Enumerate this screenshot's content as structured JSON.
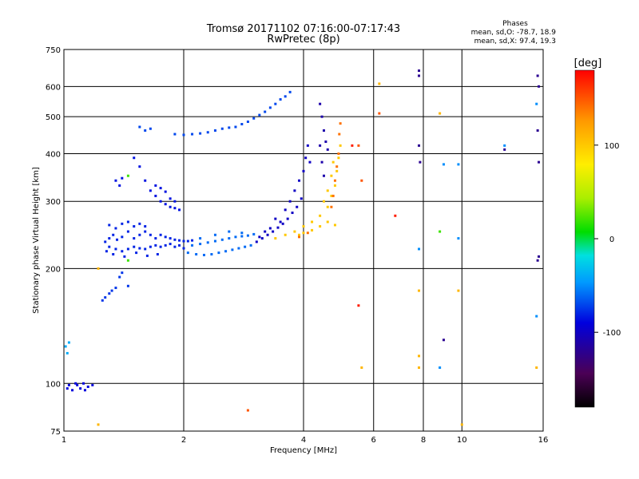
{
  "header": {
    "title_line1": "Tromsø 20171102 07:16:00-07:17:43",
    "title_line2": "RwPretec (8p)",
    "stats_title": "Phases",
    "stats_o": "mean, sd,O: -78.7, 18.9",
    "stats_x": "mean, sd,X:  97.4, 19.3"
  },
  "chart_data": {
    "type": "scatter",
    "xlabel": "Frequency [MHz]",
    "ylabel": "Stationary phase Virtual Height [km]",
    "x_scale": "log",
    "y_scale": "log",
    "xlim": [
      1,
      16
    ],
    "ylim": [
      75,
      750
    ],
    "grid": true,
    "x_ticks": [
      1,
      2,
      4,
      6,
      8,
      10,
      16
    ],
    "x_tick_labels": [
      "1",
      "2",
      "4",
      "6",
      "8",
      "10",
      "16"
    ],
    "y_ticks": [
      75,
      100,
      200,
      300,
      400,
      500,
      600,
      750
    ],
    "y_tick_labels": [
      "75",
      "100",
      "200",
      "300",
      "400",
      "500",
      "600",
      "750"
    ],
    "colorbar": {
      "label": "[deg]",
      "range": [
        -180,
        180
      ],
      "ticks": [
        100,
        0,
        -100
      ],
      "tick_labels": [
        "100",
        "0",
        "-100"
      ],
      "colormap": "rainbow (black-purple-blue-cyan-green-yellow-orange-red)"
    },
    "series": [
      {
        "phase_deg": -90,
        "points": [
          [
            1.02,
            97
          ],
          [
            1.05,
            96
          ],
          [
            1.08,
            99
          ],
          [
            1.1,
            97
          ],
          [
            1.12,
            100
          ],
          [
            1.15,
            98
          ],
          [
            1.18,
            99
          ],
          [
            1.03,
            99
          ],
          [
            1.07,
            100
          ],
          [
            1.13,
            96
          ]
        ]
      },
      {
        "phase_deg": -40,
        "points": [
          [
            1.01,
            125
          ],
          [
            1.02,
            120
          ],
          [
            1.03,
            128
          ]
        ]
      },
      {
        "phase_deg": -75,
        "points": [
          [
            1.25,
            165
          ],
          [
            1.27,
            168
          ],
          [
            1.3,
            172
          ],
          [
            1.32,
            175
          ],
          [
            1.35,
            178
          ],
          [
            1.38,
            190
          ],
          [
            1.4,
            195
          ],
          [
            1.45,
            180
          ]
        ]
      },
      {
        "phase_deg": -80,
        "points": [
          [
            1.27,
            235
          ],
          [
            1.3,
            240
          ],
          [
            1.33,
            245
          ],
          [
            1.36,
            238
          ],
          [
            1.4,
            242
          ],
          [
            1.45,
            250
          ],
          [
            1.5,
            240
          ],
          [
            1.55,
            245
          ],
          [
            1.6,
            250
          ],
          [
            1.65,
            245
          ],
          [
            1.7,
            240
          ],
          [
            1.75,
            245
          ],
          [
            1.8,
            242
          ],
          [
            1.85,
            240
          ],
          [
            1.9,
            238
          ],
          [
            1.95,
            237
          ],
          [
            2.0,
            236
          ],
          [
            2.05,
            236
          ],
          [
            2.1,
            237
          ],
          [
            1.3,
            228
          ],
          [
            1.35,
            225
          ],
          [
            1.4,
            222
          ],
          [
            1.45,
            225
          ],
          [
            1.5,
            228
          ],
          [
            1.55,
            226
          ],
          [
            1.6,
            225
          ],
          [
            1.65,
            228
          ],
          [
            1.7,
            230
          ],
          [
            1.75,
            228
          ],
          [
            1.8,
            230
          ],
          [
            1.85,
            232
          ],
          [
            1.9,
            228
          ],
          [
            1.95,
            230
          ],
          [
            2.0,
            226
          ],
          [
            1.3,
            260
          ],
          [
            1.35,
            255
          ],
          [
            1.4,
            262
          ],
          [
            1.45,
            265
          ],
          [
            1.5,
            258
          ],
          [
            1.55,
            262
          ],
          [
            1.6,
            258
          ],
          [
            1.28,
            222
          ],
          [
            1.33,
            218
          ],
          [
            1.42,
            215
          ],
          [
            1.52,
            220
          ],
          [
            1.62,
            216
          ],
          [
            1.72,
            218
          ]
        ]
      },
      {
        "phase_deg": -60,
        "points": [
          [
            2.05,
            220
          ],
          [
            2.15,
            218
          ],
          [
            2.25,
            217
          ],
          [
            2.35,
            218
          ],
          [
            2.45,
            220
          ],
          [
            2.55,
            222
          ],
          [
            2.65,
            224
          ],
          [
            2.75,
            226
          ],
          [
            2.85,
            228
          ],
          [
            2.95,
            230
          ],
          [
            2.1,
            230
          ],
          [
            2.2,
            232
          ],
          [
            2.3,
            234
          ],
          [
            2.4,
            236
          ],
          [
            2.5,
            238
          ],
          [
            2.6,
            240
          ],
          [
            2.7,
            242
          ],
          [
            2.8,
            243
          ],
          [
            2.9,
            244
          ],
          [
            3.0,
            246
          ],
          [
            2.2,
            240
          ],
          [
            2.4,
            245
          ],
          [
            2.6,
            250
          ],
          [
            2.8,
            248
          ]
        ]
      },
      {
        "phase_deg": -100,
        "points": [
          [
            3.05,
            235
          ],
          [
            3.15,
            240
          ],
          [
            3.25,
            245
          ],
          [
            3.35,
            250
          ],
          [
            3.45,
            256
          ],
          [
            3.55,
            262
          ],
          [
            3.65,
            270
          ],
          [
            3.75,
            280
          ],
          [
            3.85,
            290
          ],
          [
            3.95,
            305
          ],
          [
            3.4,
            270
          ],
          [
            3.5,
            265
          ],
          [
            3.6,
            285
          ],
          [
            3.7,
            300
          ],
          [
            3.8,
            320
          ],
          [
            3.9,
            340
          ],
          [
            4.0,
            360
          ],
          [
            4.05,
            390
          ],
          [
            4.1,
            420
          ],
          [
            4.15,
            380
          ],
          [
            3.3,
            255
          ],
          [
            3.2,
            250
          ],
          [
            3.1,
            242
          ]
        ]
      },
      {
        "phase_deg": 100,
        "points": [
          [
            3.4,
            240
          ],
          [
            3.6,
            245
          ],
          [
            3.8,
            250
          ],
          [
            4.0,
            258
          ],
          [
            4.2,
            265
          ],
          [
            4.4,
            275
          ],
          [
            4.6,
            290
          ],
          [
            4.7,
            310
          ],
          [
            4.8,
            330
          ],
          [
            4.85,
            360
          ],
          [
            4.9,
            390
          ],
          [
            4.95,
            420
          ],
          [
            4.8,
            260
          ],
          [
            4.6,
            265
          ],
          [
            4.4,
            258
          ],
          [
            4.2,
            252
          ],
          [
            4.0,
            248
          ],
          [
            3.9,
            245
          ],
          [
            4.5,
            300
          ],
          [
            4.6,
            320
          ],
          [
            4.7,
            350
          ],
          [
            4.75,
            380
          ]
        ]
      },
      {
        "phase_deg": 140,
        "points": [
          [
            4.7,
            290
          ],
          [
            4.75,
            310
          ],
          [
            4.8,
            340
          ],
          [
            4.85,
            370
          ],
          [
            4.9,
            400
          ],
          [
            4.92,
            450
          ],
          [
            4.95,
            480
          ],
          [
            3.9,
            242
          ],
          [
            4.1,
            248
          ]
        ]
      },
      {
        "phase_deg": -70,
        "points": [
          [
            1.9,
            450
          ],
          [
            2.0,
            448
          ],
          [
            2.1,
            450
          ],
          [
            2.2,
            452
          ],
          [
            2.3,
            455
          ],
          [
            2.4,
            460
          ],
          [
            2.5,
            465
          ],
          [
            2.6,
            468
          ],
          [
            2.7,
            470
          ],
          [
            2.8,
            478
          ],
          [
            2.9,
            485
          ],
          [
            3.0,
            495
          ],
          [
            3.1,
            505
          ],
          [
            3.2,
            515
          ],
          [
            3.3,
            528
          ],
          [
            3.4,
            540
          ],
          [
            3.5,
            555
          ],
          [
            3.6,
            565
          ],
          [
            3.7,
            580
          ],
          [
            1.55,
            470
          ],
          [
            1.6,
            460
          ],
          [
            1.65,
            465
          ]
        ]
      },
      {
        "phase_deg": -110,
        "points": [
          [
            4.4,
            540
          ],
          [
            4.45,
            500
          ],
          [
            4.5,
            460
          ],
          [
            4.55,
            430
          ],
          [
            4.6,
            410
          ],
          [
            4.4,
            420
          ],
          [
            4.45,
            380
          ],
          [
            4.5,
            350
          ]
        ]
      },
      {
        "phase_deg": -85,
        "points": [
          [
            1.5,
            390
          ],
          [
            1.55,
            370
          ],
          [
            1.6,
            340
          ],
          [
            1.65,
            320
          ],
          [
            1.7,
            310
          ],
          [
            1.75,
            300
          ],
          [
            1.8,
            295
          ],
          [
            1.85,
            290
          ],
          [
            1.9,
            288
          ],
          [
            1.95,
            285
          ],
          [
            1.7,
            330
          ],
          [
            1.75,
            325
          ],
          [
            1.8,
            318
          ],
          [
            1.85,
            305
          ],
          [
            1.9,
            300
          ],
          [
            1.35,
            340
          ],
          [
            1.38,
            330
          ],
          [
            1.4,
            345
          ]
        ]
      },
      {
        "phase_deg": -120,
        "points": [
          [
            7.8,
            660
          ],
          [
            7.8,
            640
          ],
          [
            7.8,
            420
          ],
          [
            7.85,
            380
          ],
          [
            15.5,
            640
          ],
          [
            15.6,
            600
          ],
          [
            15.5,
            460
          ],
          [
            15.6,
            380
          ],
          [
            15.6,
            215
          ],
          [
            15.5,
            210
          ],
          [
            12.8,
            410
          ],
          [
            9.0,
            130
          ]
        ]
      },
      {
        "phase_deg": -50,
        "points": [
          [
            12.8,
            420
          ],
          [
            15.4,
            540
          ],
          [
            9.8,
            375
          ],
          [
            9.0,
            375
          ],
          [
            7.8,
            225
          ],
          [
            9.8,
            240
          ],
          [
            8.8,
            110
          ],
          [
            15.4,
            150
          ]
        ]
      },
      {
        "phase_deg": 110,
        "points": [
          [
            6.2,
            610
          ],
          [
            8.8,
            510
          ],
          [
            7.8,
            175
          ],
          [
            7.8,
            118
          ],
          [
            7.8,
            110
          ],
          [
            5.6,
            110
          ],
          [
            15.4,
            110
          ],
          [
            9.8,
            175
          ],
          [
            10.0,
            78
          ],
          [
            1.22,
            200
          ],
          [
            1.22,
            78
          ]
        ]
      },
      {
        "phase_deg": 150,
        "points": [
          [
            2.9,
            85
          ],
          [
            5.6,
            340
          ],
          [
            5.5,
            420
          ],
          [
            6.2,
            510
          ]
        ]
      },
      {
        "phase_deg": 170,
        "points": [
          [
            6.8,
            275
          ],
          [
            5.5,
            160
          ],
          [
            5.3,
            420
          ]
        ]
      },
      {
        "phase_deg": 20,
        "points": [
          [
            1.45,
            350
          ],
          [
            8.8,
            250
          ],
          [
            1.45,
            210
          ]
        ]
      }
    ]
  }
}
